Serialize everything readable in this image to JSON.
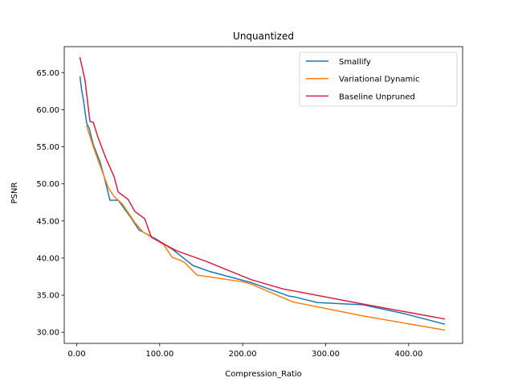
{
  "chart_data": {
    "type": "line",
    "title": "Unquantized",
    "xlabel": "Compression_Ratio",
    "ylabel": "PSNR",
    "xlim": [
      -15,
      465
    ],
    "ylim": [
      28.5,
      68.5
    ],
    "xticks": [
      0,
      100,
      200,
      300,
      400
    ],
    "xtick_labels": [
      "0.00",
      "100.00",
      "200.00",
      "300.00",
      "400.00"
    ],
    "yticks": [
      30,
      35,
      40,
      45,
      50,
      55,
      60,
      65
    ],
    "ytick_labels": [
      "30.00",
      "35.00",
      "40.00",
      "45.00",
      "50.00",
      "55.00",
      "60.00",
      "65.00"
    ],
    "grid": false,
    "legend_position": "top-right",
    "series": [
      {
        "name": "Smallify",
        "color": "#1f77b4",
        "points": [
          [
            4,
            64.4
          ],
          [
            6,
            62.6
          ],
          [
            8,
            61.4
          ],
          [
            10,
            59.8
          ],
          [
            12,
            58.2
          ],
          [
            15,
            57.5
          ],
          [
            20,
            55.3
          ],
          [
            28,
            53.0
          ],
          [
            33,
            51.0
          ],
          [
            40,
            47.8
          ],
          [
            50,
            47.8
          ],
          [
            65,
            45.5
          ],
          [
            75,
            43.8
          ],
          [
            85,
            43.2
          ],
          [
            95,
            42.6
          ],
          [
            115,
            41.2
          ],
          [
            140,
            39.0
          ],
          [
            160,
            38.2
          ],
          [
            210,
            36.7
          ],
          [
            255,
            34.9
          ],
          [
            265,
            34.7
          ],
          [
            290,
            34.0
          ],
          [
            345,
            33.7
          ],
          [
            395,
            32.5
          ],
          [
            443,
            31.1
          ]
        ]
      },
      {
        "name": "Variational Dynamic",
        "color": "#ff7f0e",
        "points": [
          [
            12,
            57.8
          ],
          [
            20,
            55.0
          ],
          [
            28,
            52.5
          ],
          [
            38,
            49.5
          ],
          [
            45,
            48.3
          ],
          [
            55,
            47.3
          ],
          [
            70,
            44.8
          ],
          [
            80,
            43.5
          ],
          [
            92,
            42.7
          ],
          [
            105,
            41.8
          ],
          [
            115,
            40.1
          ],
          [
            125,
            39.7
          ],
          [
            130,
            39.4
          ],
          [
            145,
            37.7
          ],
          [
            200,
            36.8
          ],
          [
            210,
            36.5
          ],
          [
            260,
            34.1
          ],
          [
            300,
            33.2
          ],
          [
            345,
            32.2
          ],
          [
            443,
            30.3
          ]
        ]
      },
      {
        "name": "Baseline Unpruned",
        "color": "#d62040",
        "points": [
          [
            4,
            67.0
          ],
          [
            6,
            66.0
          ],
          [
            10,
            64.0
          ],
          [
            16,
            58.4
          ],
          [
            20,
            58.3
          ],
          [
            25,
            56.5
          ],
          [
            35,
            53.5
          ],
          [
            45,
            51.0
          ],
          [
            50,
            48.9
          ],
          [
            62,
            47.9
          ],
          [
            70,
            46.3
          ],
          [
            82,
            45.3
          ],
          [
            90,
            42.8
          ],
          [
            120,
            41.0
          ],
          [
            155,
            39.6
          ],
          [
            210,
            37.1
          ],
          [
            250,
            35.8
          ],
          [
            265,
            35.5
          ],
          [
            345,
            33.8
          ],
          [
            443,
            31.8
          ]
        ]
      }
    ]
  }
}
